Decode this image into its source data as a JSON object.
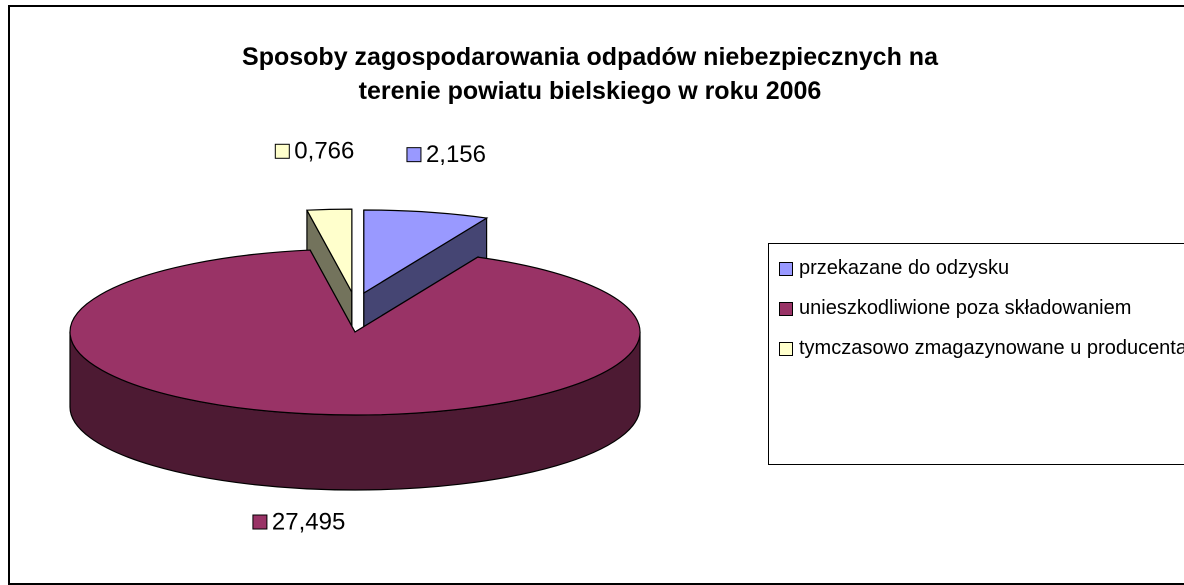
{
  "chart_data": {
    "type": "pie",
    "title": "Sposoby zagospodarowania odpadów niebezpiecznych na terenie powiatu bielskiego w roku 2006",
    "categories": [
      "przekazane do odzysku",
      "unieszkodliwione poza składowaniem",
      "tymczasowo zmagazynowane u producenta"
    ],
    "values": [
      2.156,
      27.495,
      0.766
    ],
    "value_labels": [
      "2,156",
      "27,495",
      "0,766"
    ],
    "colors": [
      "#9999ff",
      "#993366",
      "#ffffcc"
    ],
    "legend": "right"
  }
}
